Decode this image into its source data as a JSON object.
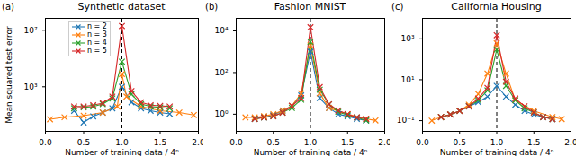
{
  "chart_data": [
    {
      "type": "line",
      "panel_label": "(a)",
      "title": "Synthetic dataset",
      "x_label": "Number of training data / 4ⁿ",
      "y_label": "Mean squared test error",
      "log": "y",
      "grid": false,
      "legend": "upper left",
      "marker": "x",
      "xlim": [
        0,
        2
      ],
      "xticks": [
        {
          "value": 0,
          "label": "0.0"
        },
        {
          "value": 0.5,
          "label": "0.5"
        },
        {
          "value": 1,
          "label": "1.0"
        },
        {
          "value": 1.5,
          "label": "1.5"
        },
        {
          "value": 2,
          "label": "2.0"
        }
      ],
      "ylim": [
        0.7,
        70000000
      ],
      "yticks": [
        {
          "value": 1000,
          "label": "10³"
        },
        {
          "value": 10000000,
          "label": "10⁷"
        }
      ],
      "reference_line": {
        "x": 1,
        "line_style": "dashed",
        "color": "#000000"
      },
      "series": [
        {
          "name": "n = 2",
          "color": "#1f77b4",
          "x": [
            0.375,
            0.5,
            0.625,
            0.75,
            0.875,
            1.0,
            1.125,
            1.25,
            1.375,
            1.5,
            1.625
          ],
          "values": [
            20,
            3,
            8,
            15,
            30,
            1000,
            80,
            30,
            20,
            15,
            12
          ]
        },
        {
          "name": "n = 3",
          "color": "#ff7f0e",
          "x": [
            0.06,
            0.25,
            0.5,
            0.75,
            0.94,
            1.0,
            1.06,
            1.25,
            1.5,
            1.75,
            1.94
          ],
          "values": [
            5,
            7,
            9,
            15,
            40,
            8000,
            200,
            40,
            20,
            15,
            10
          ]
        },
        {
          "name": "n = 4",
          "color": "#2ca02c",
          "x": [
            0.375,
            0.5,
            0.625,
            0.75,
            0.875,
            1.0,
            1.125,
            1.25,
            1.375,
            1.5,
            1.625
          ],
          "values": [
            30,
            35,
            40,
            60,
            150,
            60000,
            300,
            60,
            40,
            35,
            30
          ]
        },
        {
          "name": "n = 5",
          "color": "#d62728",
          "x": [
            0.375,
            0.5,
            0.625,
            0.75,
            0.875,
            1.0,
            1.125,
            1.25,
            1.375,
            1.5,
            1.625
          ],
          "values": [
            40,
            40,
            50,
            70,
            200,
            20000000,
            500,
            80,
            50,
            45,
            40
          ]
        }
      ]
    },
    {
      "type": "line",
      "panel_label": "(b)",
      "title": "Fashion MNIST",
      "x_label": "Number of training data / 4ⁿ",
      "log": "y",
      "grid": false,
      "marker": "x",
      "xlim": [
        0,
        2
      ],
      "xticks": [
        {
          "value": 0,
          "label": "0.0"
        },
        {
          "value": 0.5,
          "label": "0.5"
        },
        {
          "value": 1,
          "label": "1.0"
        },
        {
          "value": 1.5,
          "label": "1.5"
        },
        {
          "value": 2,
          "label": "2.0"
        }
      ],
      "ylim": [
        0.15,
        40000
      ],
      "yticks": [
        {
          "value": 1,
          "label": "10⁰"
        },
        {
          "value": 100,
          "label": "10²"
        },
        {
          "value": 10000,
          "label": "10⁴"
        }
      ],
      "reference_line": {
        "x": 1,
        "line_style": "dashed",
        "color": "#000000"
      },
      "series": [
        {
          "name": "n = 2",
          "color": "#1f77b4",
          "x": [
            0.25,
            0.375,
            0.5,
            0.625,
            0.75,
            0.875,
            1.0,
            1.125,
            1.25,
            1.375,
            1.5,
            1.625,
            1.75
          ],
          "values": [
            0.6,
            0.7,
            0.9,
            1.5,
            2.5,
            8,
            1000,
            6,
            2,
            1,
            0.8,
            0.6,
            0.5
          ]
        },
        {
          "name": "n = 3",
          "color": "#ff7f0e",
          "x": [
            0.125,
            0.25,
            0.375,
            0.5,
            0.625,
            0.75,
            0.875,
            1.0,
            1.125,
            1.25,
            1.5,
            1.75,
            1.875
          ],
          "values": [
            0.7,
            0.7,
            0.8,
            1,
            1.5,
            2.5,
            10,
            2000,
            10,
            2,
            1,
            0.6,
            0.5
          ]
        },
        {
          "name": "n = 4",
          "color": "#2ca02c",
          "x": [
            0.25,
            0.375,
            0.5,
            0.625,
            0.75,
            0.875,
            1.0,
            1.125,
            1.25,
            1.375,
            1.5,
            1.625,
            1.75
          ],
          "values": [
            0.6,
            0.7,
            0.8,
            1.2,
            2,
            5,
            3000,
            15,
            3,
            1.3,
            0.9,
            0.7,
            0.5
          ]
        },
        {
          "name": "n = 5",
          "color": "#d62728",
          "x": [
            0.25,
            0.375,
            0.5,
            0.625,
            0.75,
            0.875,
            1.0,
            1.125,
            1.25,
            1.375,
            1.5,
            1.625,
            1.75
          ],
          "values": [
            0.6,
            0.7,
            0.8,
            1.2,
            2.5,
            6,
            15000,
            20,
            3,
            1.5,
            1,
            0.7,
            0.6
          ]
        }
      ]
    },
    {
      "type": "line",
      "panel_label": "(c)",
      "title": "California Housing",
      "x_label": "Number of training data / 4ⁿ",
      "log": "y",
      "grid": false,
      "marker": "x",
      "xlim": [
        0,
        2
      ],
      "xticks": [
        {
          "value": 0,
          "label": "0.0"
        },
        {
          "value": 0.5,
          "label": "0.5"
        },
        {
          "value": 1,
          "label": "1.0"
        },
        {
          "value": 1.5,
          "label": "1.5"
        },
        {
          "value": 2,
          "label": "2.0"
        }
      ],
      "ylim": [
        0.03,
        10000
      ],
      "yticks": [
        {
          "value": 0.1,
          "label": "10⁻¹"
        },
        {
          "value": 10,
          "label": "10¹"
        },
        {
          "value": 1000,
          "label": "10³"
        }
      ],
      "reference_line": {
        "x": 1,
        "line_style": "dashed",
        "color": "#000000"
      },
      "series": [
        {
          "name": "n = 2",
          "color": "#1f77b4",
          "x": [
            0.25,
            0.375,
            0.5,
            0.625,
            0.75,
            0.875,
            1.0,
            1.125,
            1.25,
            1.375,
            1.5,
            1.625,
            1.75
          ],
          "values": [
            0.15,
            0.2,
            0.3,
            0.5,
            0.8,
            1.5,
            5,
            1.5,
            0.6,
            0.3,
            0.2,
            0.15,
            0.12
          ]
        },
        {
          "name": "n = 3",
          "color": "#ff7f0e",
          "x": [
            0.125,
            0.25,
            0.375,
            0.5,
            0.625,
            0.75,
            0.875,
            1.0,
            1.125,
            1.25,
            1.5,
            1.75,
            1.875
          ],
          "values": [
            0.1,
            0.15,
            0.2,
            0.3,
            0.6,
            2,
            20,
            600,
            20,
            1,
            0.3,
            0.15,
            0.12
          ]
        },
        {
          "name": "n = 4",
          "color": "#2ca02c",
          "x": [
            0.25,
            0.375,
            0.5,
            0.625,
            0.75,
            0.875,
            1.0,
            1.125,
            1.25,
            1.375,
            1.5,
            1.625,
            1.75
          ],
          "values": [
            0.15,
            0.2,
            0.3,
            0.5,
            1,
            3,
            300,
            5,
            1,
            0.4,
            0.25,
            0.15,
            0.12
          ]
        },
        {
          "name": "n = 5",
          "color": "#d62728",
          "x": [
            0.25,
            0.375,
            0.5,
            0.625,
            0.75,
            0.875,
            1.0,
            1.125,
            1.25,
            1.375,
            1.5,
            1.625,
            1.75
          ],
          "values": [
            0.15,
            0.2,
            0.3,
            0.5,
            1.2,
            4,
            1500,
            8,
            1.2,
            0.5,
            0.25,
            0.15,
            0.12
          ]
        }
      ]
    }
  ]
}
